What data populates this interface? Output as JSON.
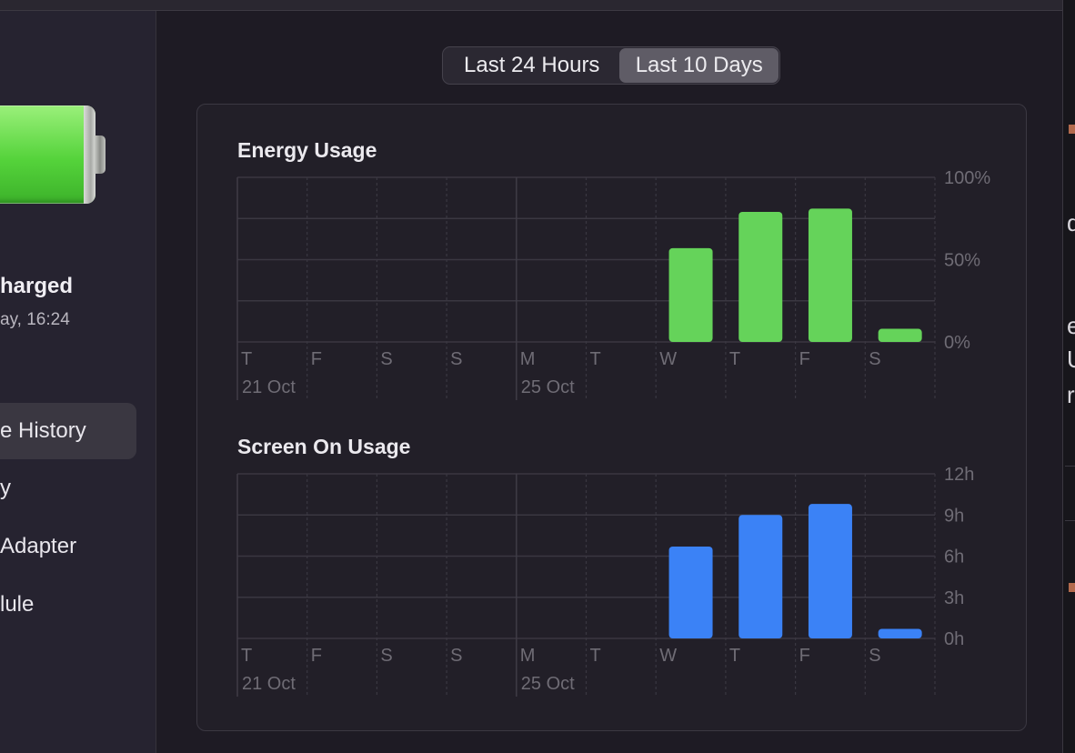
{
  "sidebar": {
    "status_title": "harged",
    "status_time": "ay, 16:24",
    "items": [
      {
        "label": "e History",
        "selected": true
      },
      {
        "label": "y",
        "selected": false
      },
      {
        "label": " Adapter",
        "selected": false
      },
      {
        "label": "lule",
        "selected": false
      }
    ]
  },
  "range_control": {
    "options": [
      "Last 24 Hours",
      "Last 10 Days"
    ],
    "selected": "Last 10 Days"
  },
  "right_edge": {
    "glyphs": [
      "d",
      "e",
      "U",
      "r"
    ]
  },
  "colors": {
    "energy_bar": "#65d35a",
    "screen_bar": "#3b82f6",
    "grid": "#3a3741",
    "axis_text": "#6f6c75"
  },
  "chart_data": [
    {
      "type": "bar",
      "title": "Energy Usage",
      "categories": [
        "T",
        "F",
        "S",
        "S",
        "M",
        "T",
        "W",
        "T",
        "F",
        "S"
      ],
      "date_labels": [
        {
          "index": 0,
          "label": "21 Oct"
        },
        {
          "index": 4,
          "label": "25 Oct"
        }
      ],
      "values": [
        0,
        0,
        0,
        0,
        0,
        0,
        57,
        79,
        81,
        8
      ],
      "y_ticks": [
        "0%",
        "50%",
        "100%"
      ],
      "y_tick_values": [
        0,
        50,
        100
      ],
      "ylim": [
        0,
        100
      ],
      "grid": true,
      "color": "#65d35a"
    },
    {
      "type": "bar",
      "title": "Screen On Usage",
      "categories": [
        "T",
        "F",
        "S",
        "S",
        "M",
        "T",
        "W",
        "T",
        "F",
        "S"
      ],
      "date_labels": [
        {
          "index": 0,
          "label": "21 Oct"
        },
        {
          "index": 4,
          "label": "25 Oct"
        }
      ],
      "values": [
        0,
        0,
        0,
        0,
        0,
        0,
        6.7,
        9.0,
        9.8,
        0.7
      ],
      "y_ticks": [
        "0h",
        "3h",
        "6h",
        "9h",
        "12h"
      ],
      "y_tick_values": [
        0,
        3,
        6,
        9,
        12
      ],
      "ylim": [
        0,
        12
      ],
      "grid": true,
      "color": "#3b82f6"
    }
  ]
}
